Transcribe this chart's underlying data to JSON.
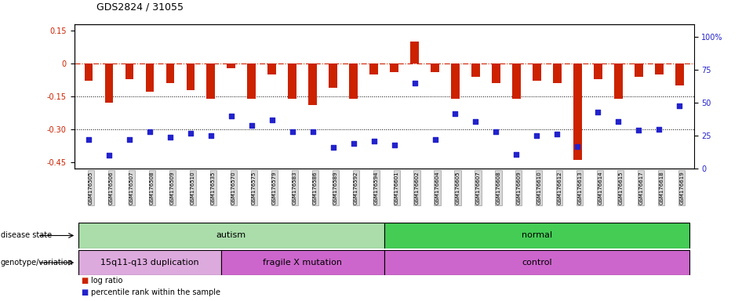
{
  "title": "GDS2824 / 31055",
  "samples": [
    "GSM176505",
    "GSM176506",
    "GSM176507",
    "GSM176508",
    "GSM176509",
    "GSM176510",
    "GSM176535",
    "GSM176570",
    "GSM176575",
    "GSM176579",
    "GSM176583",
    "GSM176586",
    "GSM176589",
    "GSM176592",
    "GSM176594",
    "GSM176601",
    "GSM176602",
    "GSM176604",
    "GSM176605",
    "GSM176607",
    "GSM176608",
    "GSM176609",
    "GSM176610",
    "GSM176612",
    "GSM176613",
    "GSM176614",
    "GSM176615",
    "GSM176617",
    "GSM176618",
    "GSM176619"
  ],
  "log_ratio": [
    -0.08,
    -0.18,
    -0.07,
    -0.13,
    -0.09,
    -0.12,
    -0.16,
    -0.02,
    -0.16,
    -0.05,
    -0.16,
    -0.19,
    -0.11,
    -0.16,
    -0.05,
    -0.04,
    0.1,
    -0.04,
    -0.16,
    -0.06,
    -0.09,
    -0.16,
    -0.08,
    -0.09,
    -0.44,
    -0.07,
    -0.16,
    -0.06,
    -0.05,
    -0.1
  ],
  "percentile": [
    22,
    10,
    22,
    28,
    24,
    27,
    25,
    40,
    33,
    37,
    28,
    28,
    16,
    19,
    21,
    18,
    65,
    22,
    42,
    36,
    28,
    11,
    25,
    26,
    17,
    43,
    36,
    29,
    30,
    48
  ],
  "ylim_left": [
    -0.48,
    0.18
  ],
  "ylim_right": [
    0,
    110
  ],
  "yticks_left": [
    0.15,
    0.0,
    -0.15,
    -0.3,
    -0.45
  ],
  "ytick_labels_left": [
    "0.15",
    "0",
    "-0.15",
    "-0.30",
    "-0.45"
  ],
  "yticks_right": [
    0,
    25,
    50,
    75,
    100
  ],
  "ytick_labels_right": [
    "0",
    "25",
    "50",
    "75",
    "100%"
  ],
  "bar_color": "#cc2200",
  "dot_color": "#2222cc",
  "dashed_color": "#cc2200",
  "disease_groups": [
    {
      "label": "autism",
      "start": 0,
      "end": 14,
      "color": "#aaddaa"
    },
    {
      "label": "normal",
      "start": 15,
      "end": 29,
      "color": "#44cc55"
    }
  ],
  "geno_groups": [
    {
      "label": "15q11-q13 duplication",
      "start": 0,
      "end": 6,
      "color": "#ddaadd"
    },
    {
      "label": "fragile X mutation",
      "start": 7,
      "end": 14,
      "color": "#cc66cc"
    },
    {
      "label": "control",
      "start": 15,
      "end": 29,
      "color": "#cc66cc"
    }
  ]
}
